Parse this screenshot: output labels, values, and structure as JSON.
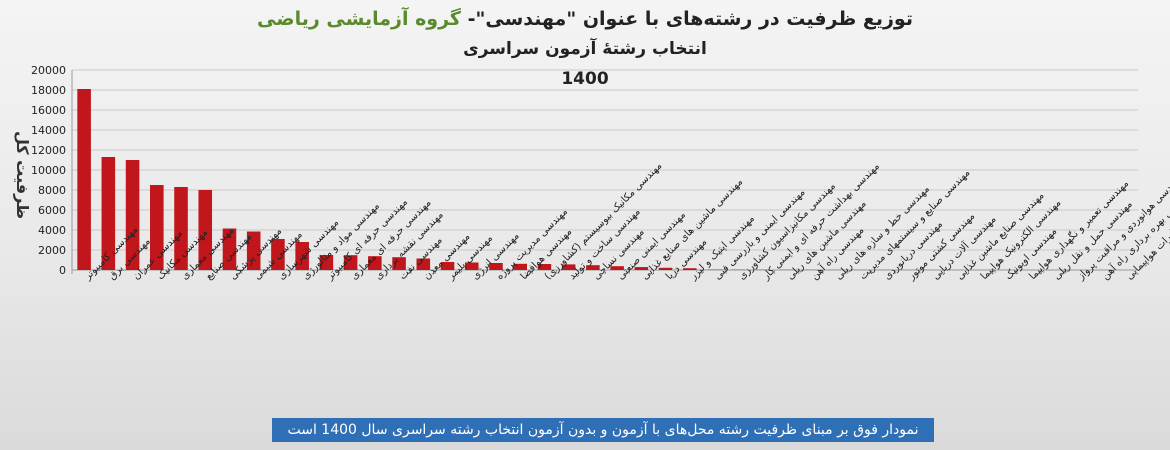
{
  "titles": {
    "line1_part1": "توزیع ظرفیت در رشته‌های با عنوان \"مهندسی\"- ",
    "line1_part2": "گروه آزمایشی ریاضی",
    "line2": "انتخاب رشتهٔ آزمون سراسری",
    "line3": "1400"
  },
  "footer": "نمودار فوق بر مبنای ظرفیت رشته محل‌های با آزمون و بدون آزمون انتخاب رشته سراسری سال 1400 است",
  "colors": {
    "bar": "#c0161c",
    "grid": "#c9c9c9",
    "axis": "#9a9a9a",
    "accent": "#5b8a2c",
    "footer_bg": "#2f6fb5"
  },
  "chart_data": {
    "type": "bar",
    "title": "توزیع ظرفیت در رشته‌های با عنوان \"مهندسی\"- گروه آزمایشی ریاضی انتخاب رشتهٔ آزمون سراسری 1400",
    "ylabel": "ظرفیت کل",
    "xlabel": "",
    "ylim": [
      0,
      20000
    ],
    "yticks": [
      0,
      2000,
      4000,
      6000,
      8000,
      10000,
      12000,
      14000,
      16000,
      18000,
      20000
    ],
    "grid": true,
    "categories": [
      "مهندسی کامپیوتر",
      "مهندسی برق",
      "مهندسی عمران",
      "مهندسی مکانیک",
      "مهندسی معماری",
      "مهندسی صنایع",
      "مهندسی پزشکی",
      "مهندسی شیمی",
      "مهندسی شهرسازی",
      "مهندسی مواد و متالورژی",
      "مهندسی حرفه ای کامپیوتر",
      "مهندسی حرفه ای معماری",
      "مهندسی نقشه برداری",
      "مهندسی نفت",
      "مهندسی معدن",
      "مهندسی پلیمر",
      "مهندسی انرژی",
      "مهندسی مدیریت پروژه",
      "مهندسی هوافضا",
      "مهندسی مکانیک بیوسیستم (کشاورزی)",
      "مهندسی ساخت و تولید",
      "مهندسی نساجی",
      "مهندسی ایمنی صنعتی",
      "مهندسی ماشین های صنایع غذایی",
      "مهندسی دریا",
      "مهندسی اپتیک و لیزر",
      "مهندسی ایمنی و بازرسی فنی",
      "مهندسی مکانیزاسیون کشاورزی",
      "مهندسی بهداشت حرفه ای و ایمنی کار",
      "مهندسی ماشین های ریلی",
      "مهندسی راه آهن",
      "مهندسی خط و سازه های ریلی",
      "مهندسی صنایع و سیستمهای مدیریت",
      "مهندسی دریانوردی",
      "مهندسی کشتی موتور",
      "مهندسی آلات دریایی",
      "مهندسی صنایع ماشین غذایی",
      "مهندسی الکترونیک هواپیما",
      "مهندسی اویونیک",
      "مهندسی تعمیر و نگهداری هواپیما",
      "مهندسی حمل و نقل ریلی",
      "مهندسی هوانوردی و مراقبت پرواز",
      "مهندسی بهره برداری راه آهن",
      "مهندسی مخابرات هواپیمایی"
    ],
    "values": [
      18100,
      11300,
      11000,
      8500,
      8300,
      8000,
      4150,
      3850,
      3100,
      2800,
      1500,
      1480,
      1380,
      1280,
      1150,
      800,
      750,
      700,
      620,
      600,
      560,
      480,
      380,
      290,
      220,
      180,
      35,
      30,
      25,
      20,
      18,
      15,
      12,
      10,
      8,
      7,
      6,
      5,
      4,
      3,
      3,
      2,
      2,
      2
    ]
  }
}
